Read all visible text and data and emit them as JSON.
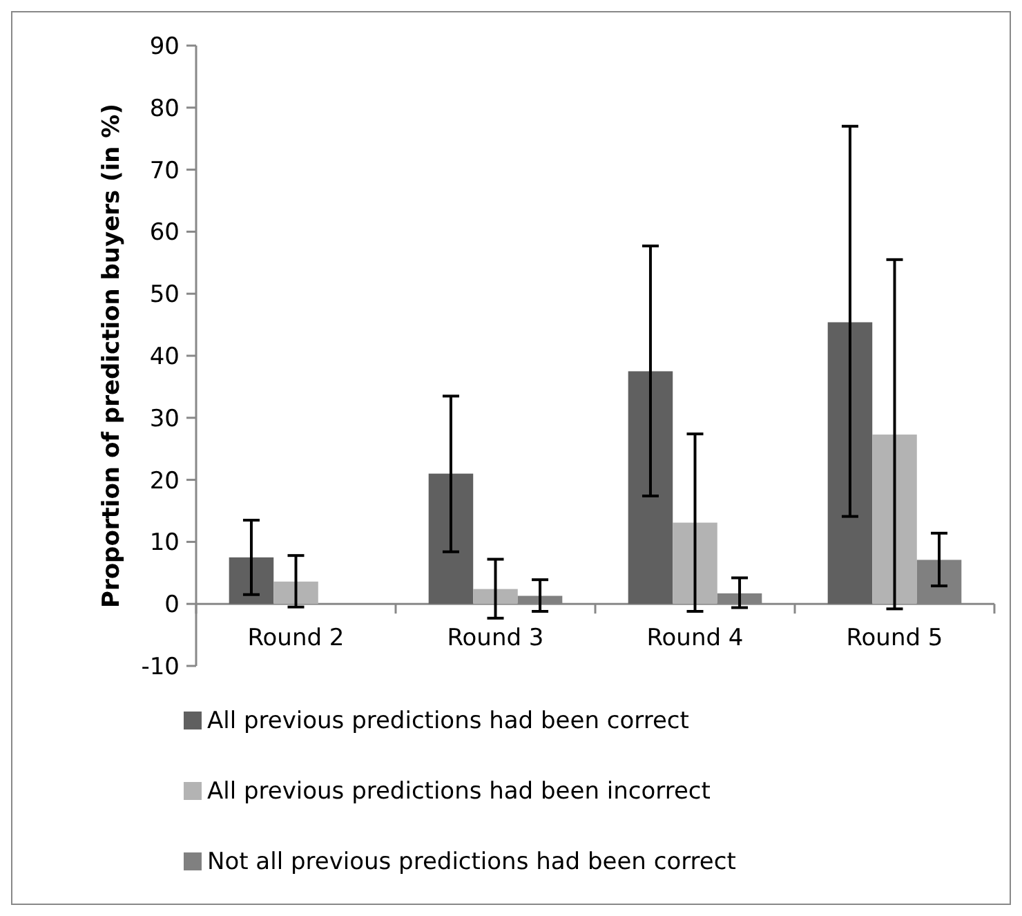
{
  "chart_data": {
    "type": "bar",
    "ylabel": "Proportion of prediction buyers (in %)",
    "categories": [
      "Round 2",
      "Round 3",
      "Round 4",
      "Round 5"
    ],
    "series": [
      {
        "name": "All previous predictions had been correct",
        "color": "#606060",
        "values": [
          7.5,
          21,
          37.5,
          45.4
        ],
        "errors": [
          [
            1.5,
            13.5
          ],
          [
            8.4,
            33.5
          ],
          [
            17.4,
            57.7
          ],
          [
            14.1,
            77
          ]
        ]
      },
      {
        "name": "All previous predictions had been incorrect",
        "color": "#b3b3b3",
        "values": [
          3.6,
          2.4,
          13.1,
          27.3
        ],
        "errors": [
          [
            -0.5,
            7.8
          ],
          [
            -2.3,
            7.2
          ],
          [
            -1.2,
            27.4
          ],
          [
            -0.8,
            55.5
          ]
        ]
      },
      {
        "name": "Not all previous predictions had been correct",
        "color": "#808080",
        "values": [
          null,
          1.3,
          1.7,
          7.1
        ],
        "errors": [
          null,
          [
            -1.2,
            3.9
          ],
          [
            -0.6,
            4.2
          ],
          [
            2.9,
            11.4
          ]
        ]
      }
    ],
    "ylim": [
      -10,
      90
    ],
    "yticks": [
      -10,
      0,
      10,
      20,
      30,
      40,
      50,
      60,
      70,
      80,
      90
    ],
    "legend": "bottom"
  }
}
